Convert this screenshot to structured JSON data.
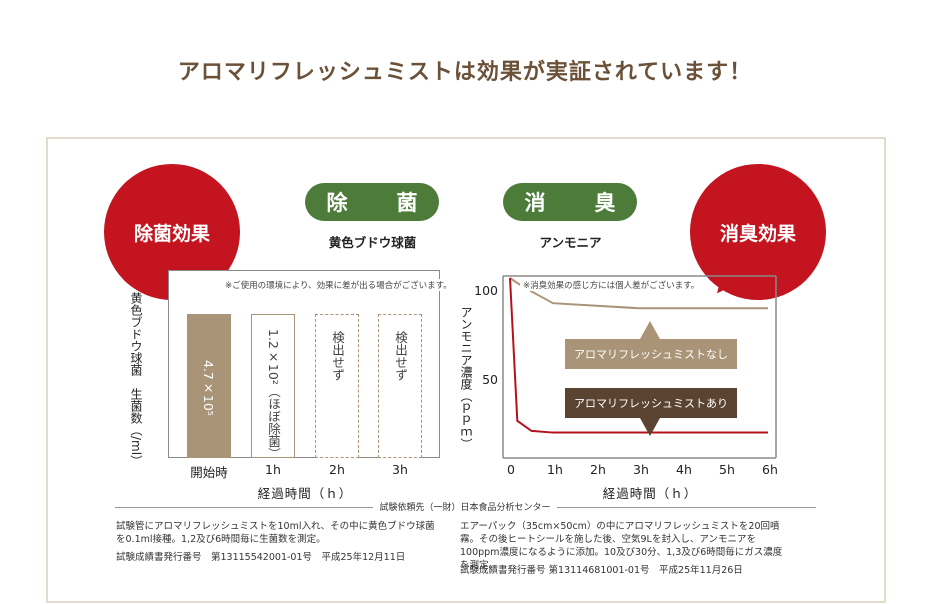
{
  "headline": "アロマリフレッシュミストは効果が実証されています！",
  "left": {
    "badge": "除菌効果",
    "pill": "除　菌",
    "subtitle": "黄色ブドウ球菌",
    "note": "※ご使用の環境により、効果に差が出る場合がございます。",
    "ylabel": "黄色ブドウ球菌　生菌数（/ml）",
    "xlabel": "経過時間（ｈ）",
    "footnote": "試験管にアロマリフレッシュミストを10ml入れ、その中に黄色ブドウ球菌を0.1ml接種。1,2及び6時間毎に生菌数を測定。",
    "report": "試験成績書発行番号　第13115542001-01号　平成25年12月11日"
  },
  "right": {
    "badge": "消臭効果",
    "pill": "消　臭",
    "subtitle": "アンモニア",
    "note": "※消臭効果の感じ方には個人差がございます。",
    "ylabel": "アンモニア濃度（ｐｐｍ）",
    "xlabel": "経過時間（ｈ）",
    "annot_without": "アロマリフレッシュミストなし",
    "annot_with": "アロマリフレッシュミストあり",
    "footnote": "エアーパック（35cm×50cm）の中にアロマリフレッシュミストを20回噴霧。その後ヒートシールを施した後、空気9Lを封入し、アンモニアを100ppm濃度になるように添加。10及び30分、1,3及び6時間毎にガス濃度を測定。",
    "report": "試験成績書発行番号 第13114681001-01号　平成25年11月26日"
  },
  "source": "試験依頼先（一財）日本食品分析センター",
  "colors": {
    "red": "#c3141f",
    "green": "#4d7c3a",
    "bar": "#a99478",
    "line_without": "#a99478",
    "line_with": "#b5121b",
    "arrow_dark": "#5a4431"
  },
  "chart_data": [
    {
      "type": "bar",
      "categories": [
        "開始時",
        "1h",
        "2h",
        "3h"
      ],
      "labels": [
        "4.7×10⁵",
        "1.2×10²（ほぼ除菌）",
        "検出せず",
        "検出せず"
      ],
      "values": [
        "4.7×10^5",
        "1.2×10^2",
        null,
        null
      ],
      "styles": [
        "filled",
        "outlined",
        "dashed",
        "dashed"
      ],
      "xlabel": "経過時間（ｈ）",
      "ylabel": "黄色ブドウ球菌　生菌数（/ml）"
    },
    {
      "type": "line",
      "x_ticks": [
        "0",
        "1h",
        "2h",
        "3h",
        "4h",
        "5h",
        "6h"
      ],
      "y_ticks": [
        100,
        50
      ],
      "xlim": [
        0,
        6
      ],
      "ylim": [
        0,
        100
      ],
      "series": [
        {
          "name": "アロマリフレッシュミストなし",
          "x": [
            0,
            0.17,
            0.5,
            1,
            3,
            6
          ],
          "y": [
            100,
            97,
            92,
            85,
            82,
            82
          ]
        },
        {
          "name": "アロマリフレッシュミストあり",
          "x": [
            0,
            0.17,
            0.5,
            1,
            3,
            6
          ],
          "y": [
            100,
            15,
            9,
            8,
            8,
            8
          ]
        }
      ],
      "xlabel": "経過時間（ｈ）",
      "ylabel": "アンモニア濃度（ｐｐｍ）"
    }
  ]
}
